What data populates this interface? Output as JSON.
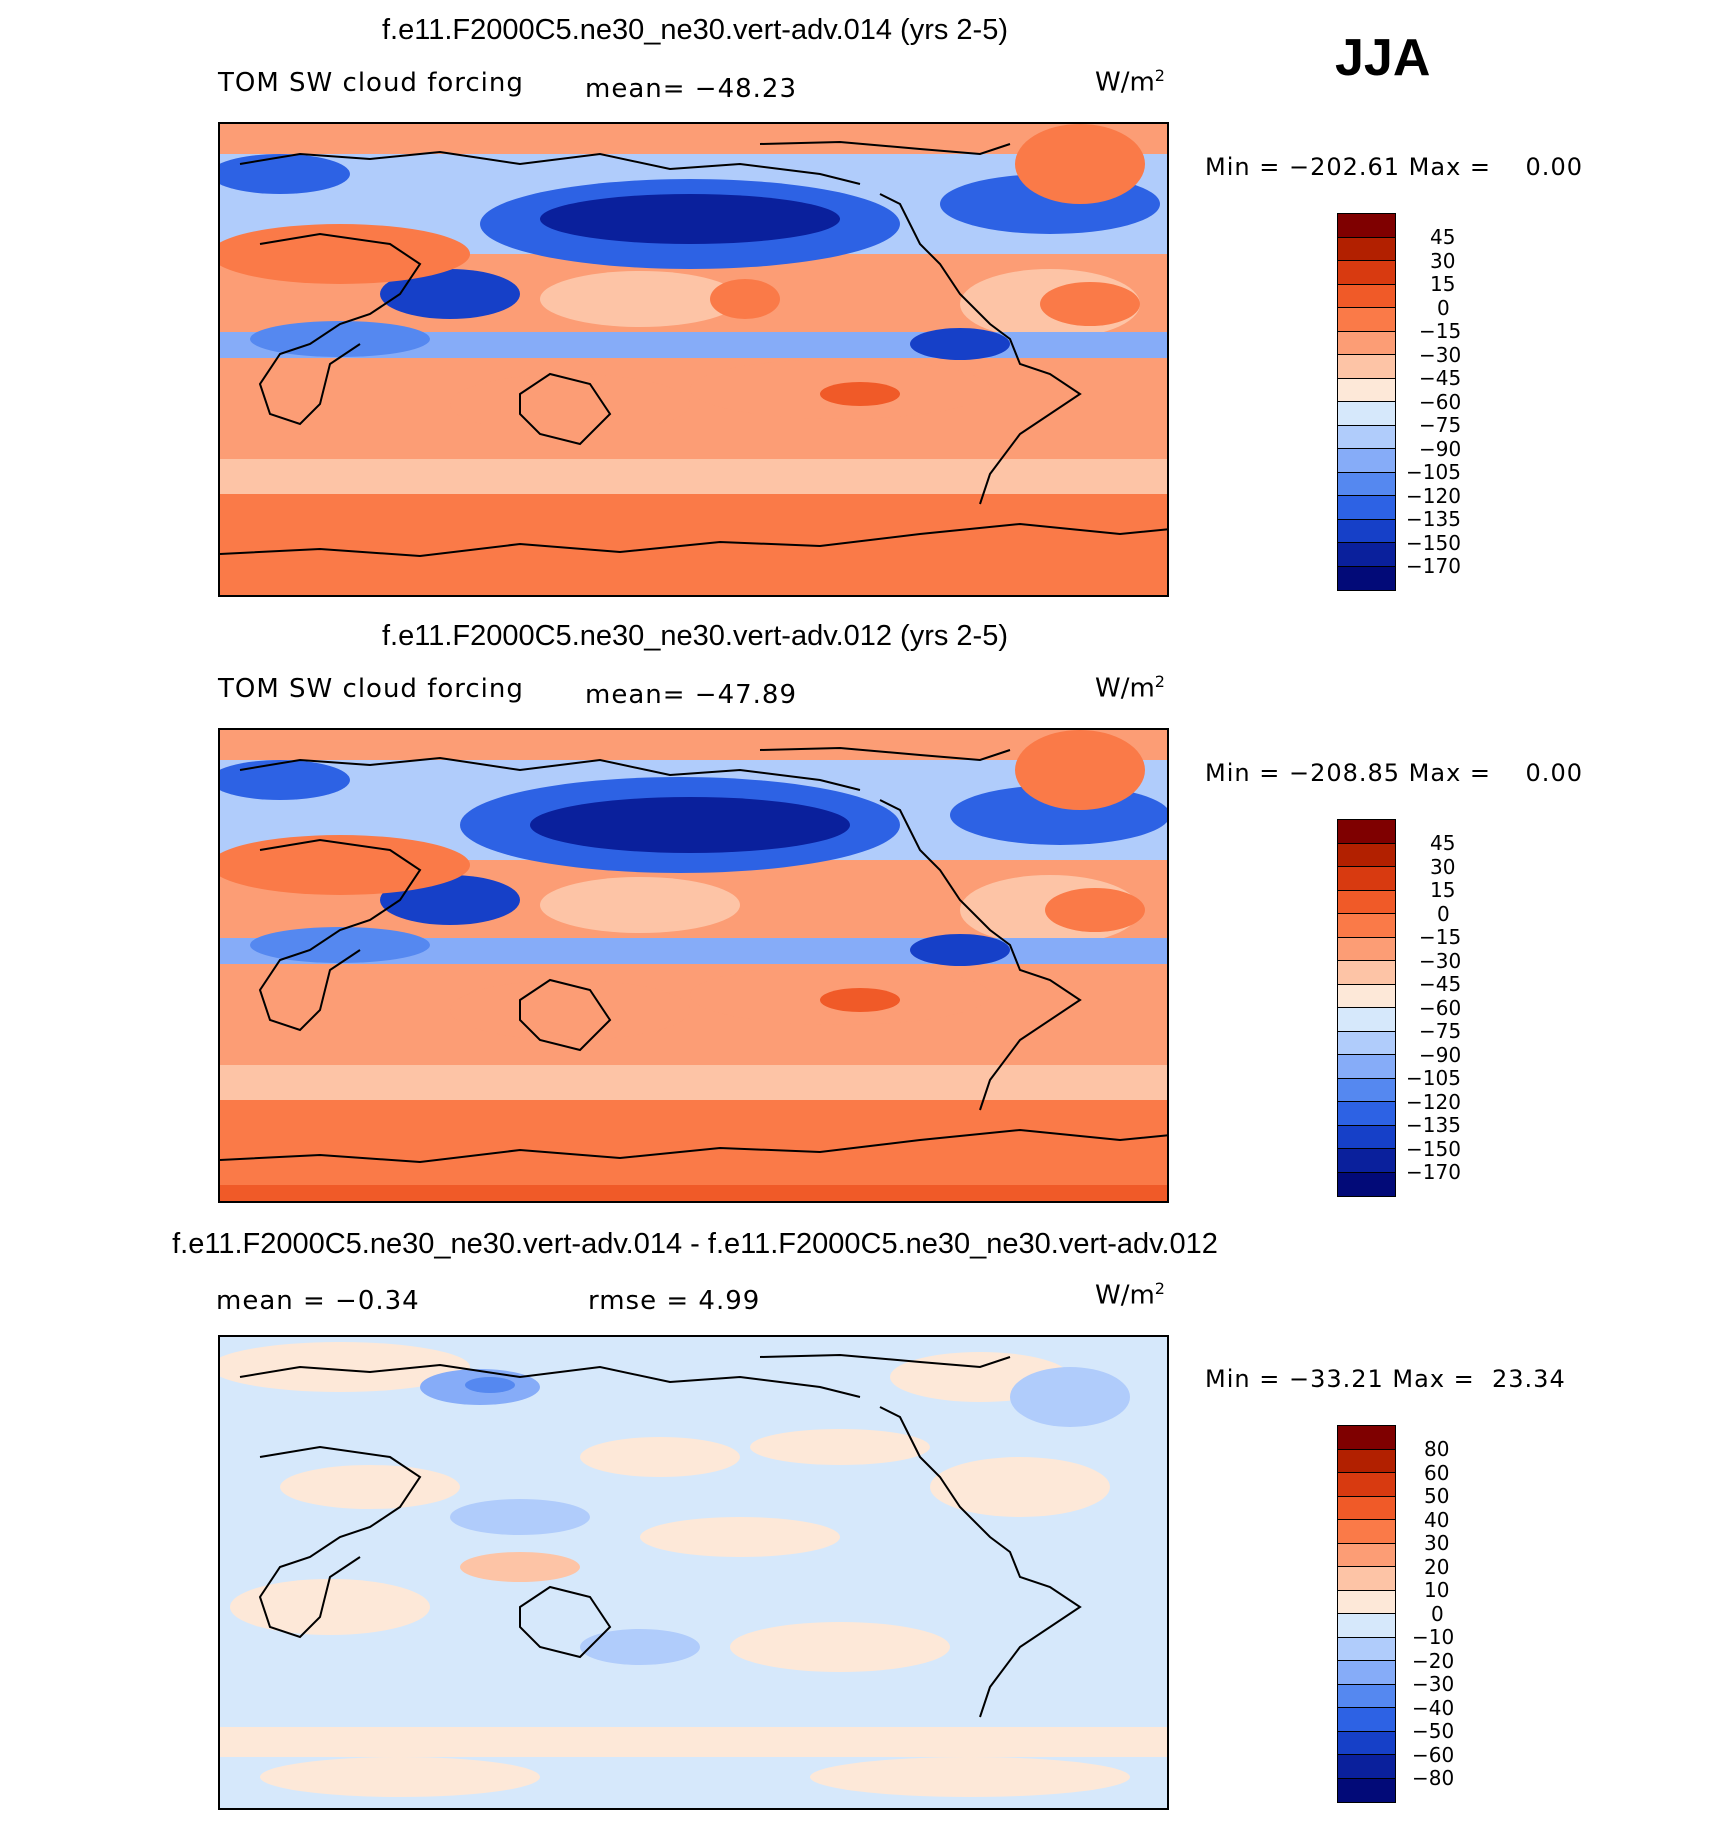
{
  "season": "JJA",
  "panels": [
    {
      "title": "f.e11.F2000C5.ne30_ne30.vert-adv.014 (yrs 2-5)",
      "left_label": "TOM SW cloud forcing",
      "stat_label": "mean= −48.23",
      "units": "W/m",
      "units_sup": "2",
      "minmax": "Min = −202.61 Max =    0.00",
      "levels": [
        "45",
        "30",
        "15",
        "0",
        "−15",
        "−30",
        "−45",
        "−60",
        "−75",
        "−90",
        "−105",
        "−120",
        "−135",
        "−150",
        "−170"
      ],
      "colors": [
        "#7f0000",
        "#b22000",
        "#d83a10",
        "#f05a28",
        "#fa7a48",
        "#fc9d75",
        "#fdc4a6",
        "#fde8d8",
        "#d6e8fb",
        "#b0ccfb",
        "#86acf8",
        "#5588f0",
        "#2d62e4",
        "#1640c8",
        "#0a209c",
        "#020a78"
      ]
    },
    {
      "title": "f.e11.F2000C5.ne30_ne30.vert-adv.012 (yrs 2-5)",
      "left_label": "TOM SW cloud forcing",
      "stat_label": "mean= −47.89",
      "units": "W/m",
      "units_sup": "2",
      "minmax": "Min = −208.85 Max =    0.00",
      "levels": [
        "45",
        "30",
        "15",
        "0",
        "−15",
        "−30",
        "−45",
        "−60",
        "−75",
        "−90",
        "−105",
        "−120",
        "−135",
        "−150",
        "−170"
      ],
      "colors": [
        "#7f0000",
        "#b22000",
        "#d83a10",
        "#f05a28",
        "#fa7a48",
        "#fc9d75",
        "#fdc4a6",
        "#fde8d8",
        "#d6e8fb",
        "#b0ccfb",
        "#86acf8",
        "#5588f0",
        "#2d62e4",
        "#1640c8",
        "#0a209c",
        "#020a78"
      ]
    },
    {
      "title": "f.e11.F2000C5.ne30_ne30.vert-adv.014 - f.e11.F2000C5.ne30_ne30.vert-adv.012",
      "left_label": "mean =   −0.34",
      "stat_label": "rmse =    4.99",
      "units": "W/m",
      "units_sup": "2",
      "minmax": "Min = −33.21 Max =  23.34",
      "levels": [
        "80",
        "60",
        "50",
        "40",
        "30",
        "20",
        "10",
        "0",
        "−10",
        "−20",
        "−30",
        "−40",
        "−50",
        "−60",
        "−80"
      ],
      "colors": [
        "#7f0000",
        "#b22000",
        "#d83a10",
        "#f05a28",
        "#fa7a48",
        "#fc9d75",
        "#fdc4a6",
        "#fde8d8",
        "#d6e8fb",
        "#b0ccfb",
        "#86acf8",
        "#5588f0",
        "#2d62e4",
        "#1640c8",
        "#0a209c",
        "#020a78"
      ]
    }
  ]
}
